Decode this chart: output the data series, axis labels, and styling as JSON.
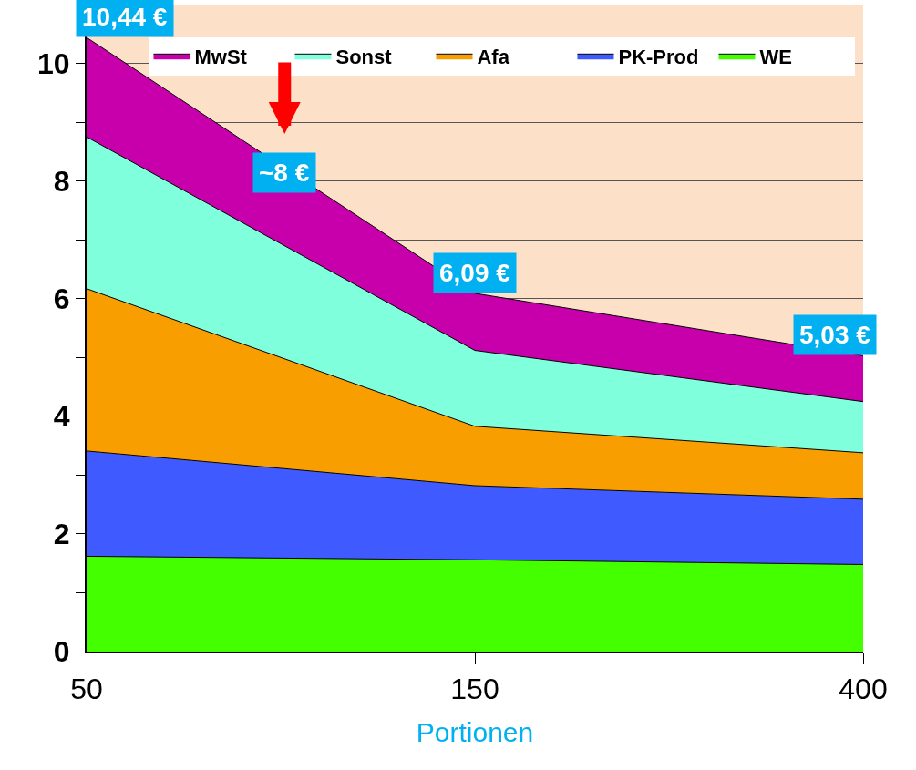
{
  "chart_data": {
    "type": "area",
    "stacked": true,
    "xlabel": "Portionen",
    "categories": [
      "50",
      "150",
      "400"
    ],
    "series": [
      {
        "name": "WE",
        "color": "#44ff00",
        "values": [
          1.62,
          1.56,
          1.48
        ]
      },
      {
        "name": "PK-Prod",
        "color": "#3f5bff",
        "values": [
          1.79,
          1.26,
          1.11
        ]
      },
      {
        "name": "Afa",
        "color": "#f89e00",
        "values": [
          2.76,
          1.01,
          0.79
        ]
      },
      {
        "name": "Sonst",
        "color": "#7fffdc",
        "values": [
          2.58,
          1.29,
          0.87
        ]
      },
      {
        "name": "MwSt",
        "color": "#c800ac",
        "values": [
          1.69,
          0.97,
          0.78
        ]
      }
    ],
    "ylim": [
      0,
      11
    ],
    "yticks": [
      0,
      {
        "value": 1,
        "label": null
      },
      2,
      {
        "value": 3,
        "label": null
      },
      4,
      {
        "value": 5,
        "label": null
      },
      6,
      {
        "value": 7,
        "label": null
      },
      8,
      {
        "value": 9,
        "label": null
      },
      10,
      {
        "value": 11,
        "label": null
      }
    ],
    "grid": "y",
    "legend": "top right",
    "annotations": [
      {
        "text": "10,44 €",
        "x": "50",
        "y": 10.44
      },
      "~8 €",
      {
        "text": "6,09 €",
        "x": "150",
        "y": 6.09
      },
      {
        "text": "5,03 €",
        "x": "400",
        "y": 5.03
      }
    ]
  }
}
